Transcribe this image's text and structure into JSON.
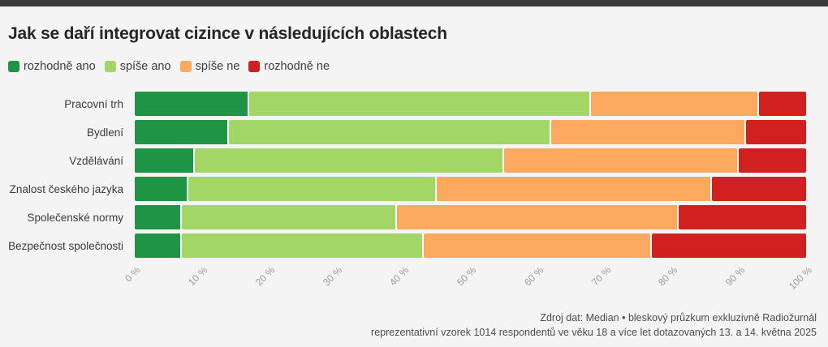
{
  "page": {
    "title": "Jak se daří integrovat cizince v následujících oblastech",
    "source_line1": "Zdroj dat: Median • bleskový průzkum exkluzivně Radiožurnál",
    "source_line2": "reprezentativní vzorek 1014 respondentů ve věku 18 a více let dotazovaných 13. a 14. května 2025"
  },
  "colors": {
    "background": "#f4f4f4",
    "top_bar": "#3a3a3a",
    "title_text": "#262626",
    "category_text": "#3a3a3a",
    "tick_text": "#9b9b9b",
    "source_text": "#4c4c4c"
  },
  "chart_data": {
    "type": "bar",
    "orientation": "horizontal",
    "stacked": true,
    "unit": "%",
    "title": "Jak se daří integrovat cizince v následujících oblastech",
    "categories": [
      "Pracovní trh",
      "Bydlení",
      "Vzdělávání",
      "Znalost českého jazyka",
      "Společenské normy",
      "Bezpečnost společnosti"
    ],
    "series": [
      {
        "name": "rozhodně ano",
        "color": "#1e9444",
        "values": [
          17,
          14,
          9,
          8,
          7,
          7
        ]
      },
      {
        "name": "spíše ano",
        "color": "#a2d667",
        "values": [
          51,
          48,
          46,
          37,
          32,
          36
        ]
      },
      {
        "name": "spíše ne",
        "color": "#fba95e",
        "values": [
          25,
          29,
          35,
          41,
          42,
          34
        ]
      },
      {
        "name": "rozhodně ne",
        "color": "#d21f1f",
        "values": [
          7,
          9,
          10,
          14,
          19,
          23
        ]
      }
    ],
    "x_axis": {
      "min": 0,
      "max": 100,
      "tick_step": 10,
      "ticks": [
        "0 %",
        "10 %",
        "20 %",
        "30 %",
        "40 %",
        "50 %",
        "60 %",
        "70 %",
        "80 %",
        "90 %",
        "100 %"
      ]
    },
    "legend_position": "top-left",
    "grid": false
  }
}
